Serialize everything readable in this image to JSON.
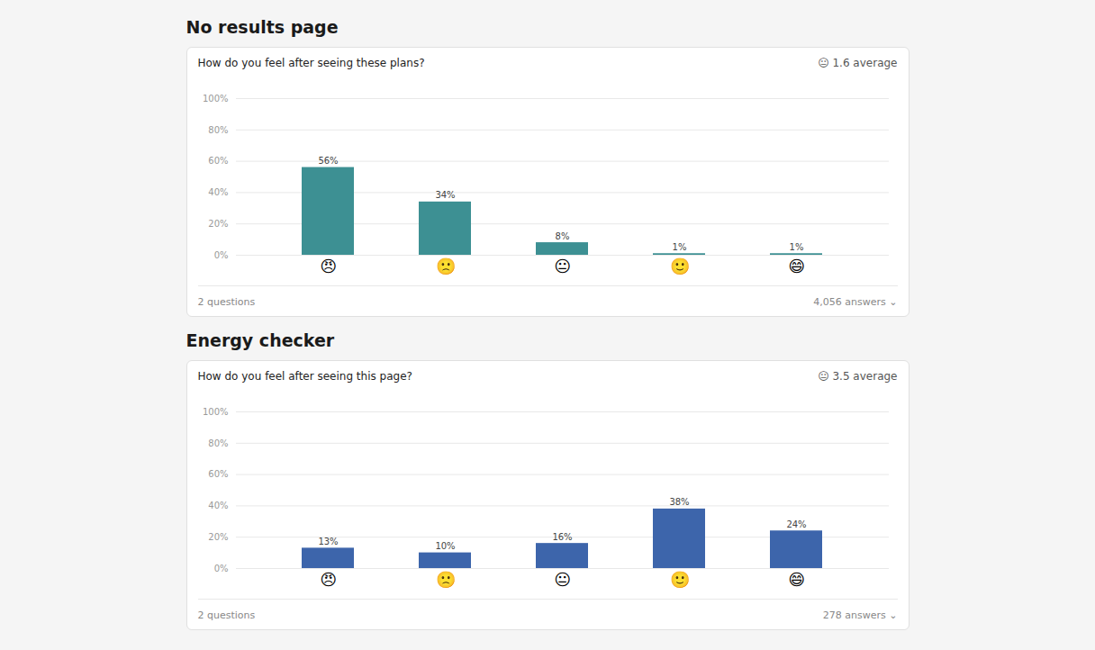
{
  "chart_data": [
    {
      "type": "bar",
      "title": "No results page",
      "subtitle": "How do you feel after seeing these plans?",
      "annotations": [
        "😐  1.6 average",
        "2 questions",
        "4,056 answers  ⌄"
      ],
      "categories": [
        "😠",
        "🙁",
        "😐",
        "🙂",
        "😄"
      ],
      "values": [
        56,
        34,
        8,
        1,
        1
      ],
      "value_labels": [
        "56%",
        "34%",
        "8%",
        "1%",
        "1%"
      ],
      "color": "#3d9093",
      "ylim": [
        0,
        100
      ],
      "yticks": [
        {
          "value": 0,
          "label": "0%"
        },
        {
          "value": 20,
          "label": "20%"
        },
        {
          "value": 40,
          "label": "40%"
        },
        {
          "value": 60,
          "label": "60%"
        },
        {
          "value": 80,
          "label": "80%"
        },
        {
          "value": 100,
          "label": "100%"
        }
      ],
      "grid": true,
      "data_labels": true
    },
    {
      "type": "bar",
      "title": "Energy checker",
      "subtitle": "How do you feel after seeing this page?",
      "annotations": [
        "😐  3.5 average",
        "2 questions",
        "278 answers  ⌄"
      ],
      "categories": [
        "😠",
        "🙁",
        "😐",
        "🙂",
        "😄"
      ],
      "values": [
        13,
        10,
        16,
        38,
        24
      ],
      "value_labels": [
        "13%",
        "10%",
        "16%",
        "38%",
        "24%"
      ],
      "color": "#3d65ab",
      "ylim": [
        0,
        100
      ],
      "yticks": [
        {
          "value": 0,
          "label": "0%"
        },
        {
          "value": 20,
          "label": "20%"
        },
        {
          "value": 40,
          "label": "40%"
        },
        {
          "value": 60,
          "label": "60%"
        },
        {
          "value": 80,
          "label": "80%"
        },
        {
          "value": 100,
          "label": "100%"
        }
      ],
      "grid": true,
      "data_labels": true
    }
  ]
}
